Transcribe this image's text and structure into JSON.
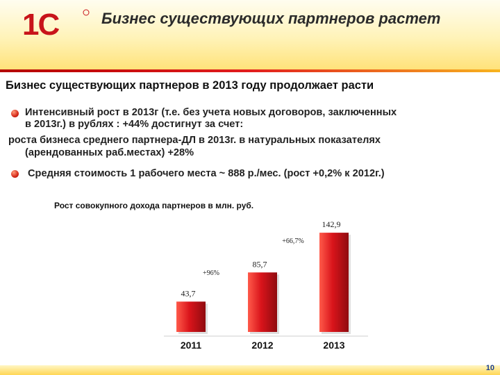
{
  "header": {
    "logo_text": "1С",
    "title": "Бизнес существующих партнеров растет"
  },
  "subtitle": "Бизнес существующих партнеров в 2013 году продолжает расти",
  "bullets": {
    "line1": "Интенсивный рост в 2013г (т.е. без учета новых договоров, заключенных",
    "line2": "в 2013г.) в рублях : +44% достигнут за счет:",
    "line3": "роста бизнеса среднего партнера-ДЛ в 2013г. в натуральных показателях",
    "line4": "(арендованных раб.местах)  +28%",
    "line5": "Средняя стоимость 1 рабочего места ~ 888 р./мес. (рост +0,2% к 2012г.)"
  },
  "colors": {
    "bar": "#d9141b",
    "bar_dark": "#8f0b0f",
    "bar_light": "#ff5a4a",
    "accent": "#b40000"
  },
  "chart_data": {
    "type": "bar",
    "title": "Рост совокупного дохода партнеров в млн. руб.",
    "categories": [
      "2011",
      "2012",
      "2013"
    ],
    "values": [
      43.7,
      85.7,
      142.9
    ],
    "value_labels": [
      "43,7",
      "85,7",
      "142,9"
    ],
    "growth_labels": [
      "+96%",
      "+66,7%"
    ],
    "ylim": [
      0,
      160
    ],
    "grid": false,
    "legend": "none"
  },
  "footer": {
    "page_number": "10"
  }
}
